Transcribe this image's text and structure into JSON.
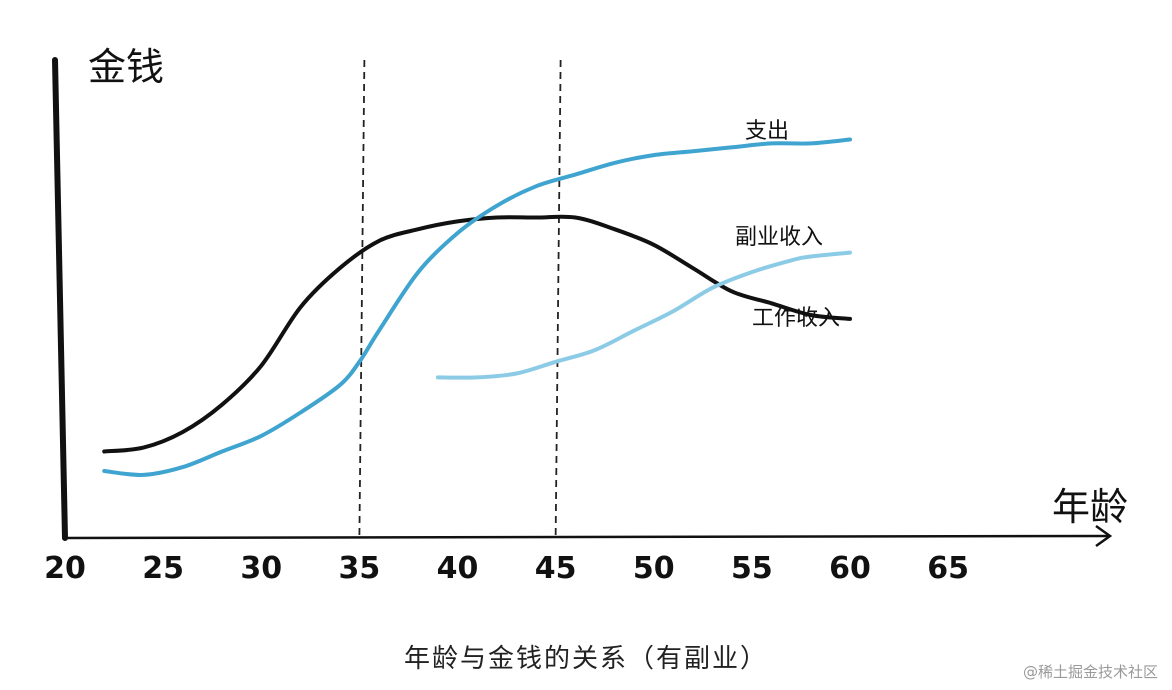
{
  "chart_data": {
    "type": "line",
    "ylabel": "金钱",
    "xlabel": "年龄",
    "x_ticks": [
      20,
      25,
      30,
      35,
      40,
      45,
      50,
      55,
      60,
      65
    ],
    "xlim": [
      20,
      67
    ],
    "ylim": [
      0,
      100
    ],
    "reference_lines_x": [
      35,
      45
    ],
    "grid": false,
    "series": [
      {
        "name": "工作收入",
        "color": "#111111",
        "x": [
          22,
          24,
          26,
          28,
          30,
          32,
          34,
          36,
          38,
          40,
          42,
          44,
          46,
          48,
          50,
          52,
          54,
          56,
          58,
          60
        ],
        "y": [
          15,
          16,
          20,
          27,
          37,
          52,
          62,
          69,
          72,
          74,
          75,
          75,
          75,
          72,
          68,
          62,
          56,
          53,
          50,
          49
        ]
      },
      {
        "name": "支出",
        "color": "#3fa4cf",
        "x": [
          22,
          24,
          26,
          28,
          30,
          32,
          34,
          35,
          36,
          38,
          40,
          42,
          44,
          46,
          48,
          50,
          52,
          54,
          56,
          58,
          60
        ],
        "y": [
          10,
          9,
          11,
          15,
          19,
          25,
          32,
          38,
          46,
          61,
          71,
          78,
          83,
          86,
          89,
          91,
          92,
          93,
          94,
          94,
          95
        ]
      },
      {
        "name": "副业收入",
        "color": "#8ccbe6",
        "x": [
          39,
          41,
          43,
          45,
          47,
          49,
          51,
          53,
          55,
          57,
          58,
          60
        ],
        "y": [
          34,
          34,
          35,
          38,
          41,
          46,
          51,
          57,
          61,
          64,
          65,
          66
        ]
      }
    ]
  },
  "caption": "年龄与金钱的关系（有副业）",
  "watermark": "@稀土掘金技术社区"
}
